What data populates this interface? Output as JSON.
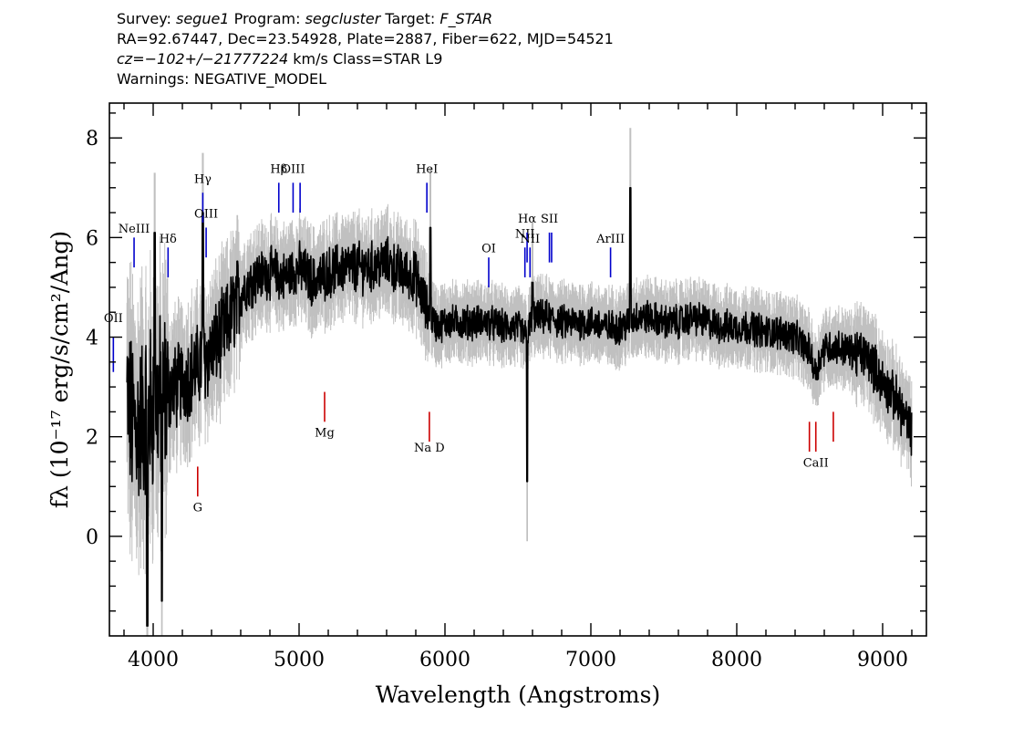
{
  "header": {
    "line1": {
      "survey_label": "Survey:",
      "survey": "segue1",
      "program_label": "Program:",
      "program": "segcluster",
      "target_label": "Target:",
      "target": "F_STAR"
    },
    "line2": "RA=92.67447, Dec=23.54928, Plate=2887, Fiber=622, MJD=54521",
    "line3": {
      "cz": "cz=−102+/−21777224",
      "rest": "km/s Class=STAR L9"
    },
    "line4": "Warnings: NEGATIVE_MODEL"
  },
  "chart_data": {
    "type": "line",
    "xlabel": "Wavelength (Angstroms)",
    "ylabel": "fλ (10⁻¹⁷ erg/s/cm²/Ang)",
    "xlim": [
      3700,
      9300
    ],
    "ylim": [
      -2.0,
      8.7
    ],
    "x_ticks": [
      4000,
      5000,
      6000,
      7000,
      8000,
      9000
    ],
    "y_ticks": [
      0,
      2,
      4,
      6,
      8
    ],
    "grid": false,
    "colors": {
      "flux": "#000000",
      "error": "#c0c0c0",
      "emission": "#0000cc",
      "absorption": "#cc0000"
    },
    "continuum": {
      "x": [
        3820,
        3850,
        3900,
        3950,
        4000,
        4100,
        4200,
        4300,
        4400,
        4500,
        4600,
        4700,
        4800,
        4900,
        5000,
        5100,
        5200,
        5300,
        5400,
        5500,
        5600,
        5700,
        5800,
        5880,
        5950,
        6000,
        6100,
        6200,
        6300,
        6400,
        6500,
        6560,
        6600,
        6700,
        6800,
        6900,
        7000,
        7100,
        7200,
        7270,
        7300,
        7400,
        7500,
        7600,
        7700,
        7800,
        7900,
        8000,
        8100,
        8200,
        8300,
        8400,
        8500,
        8540,
        8600,
        8700,
        8800,
        8900,
        9000,
        9100,
        9200
      ],
      "y": [
        2.8,
        2.3,
        2.2,
        2.5,
        2.6,
        2.9,
        3.1,
        3.4,
        3.7,
        4.2,
        4.9,
        5.2,
        5.3,
        5.2,
        5.4,
        5.1,
        5.3,
        5.4,
        5.4,
        5.4,
        5.5,
        5.3,
        5.2,
        4.5,
        4.2,
        4.3,
        4.3,
        4.3,
        4.3,
        4.2,
        4.2,
        4.0,
        4.4,
        4.4,
        4.3,
        4.3,
        4.3,
        4.2,
        4.2,
        4.3,
        4.4,
        4.4,
        4.3,
        4.3,
        4.4,
        4.3,
        4.2,
        4.2,
        4.2,
        4.1,
        4.1,
        4.0,
        3.7,
        3.3,
        3.8,
        3.8,
        3.7,
        3.6,
        3.1,
        2.7,
        2.1
      ]
    },
    "features": [
      {
        "x": 4340,
        "y": 6.5
      },
      {
        "x": 5900,
        "y": 6.2
      },
      {
        "x": 6563,
        "y": 1.1
      },
      {
        "x": 6600,
        "y": 5.1
      },
      {
        "x": 7270,
        "y": 7.0
      },
      {
        "x": 3960,
        "y": -1.8
      },
      {
        "x": 4060,
        "y": -1.3
      },
      {
        "x": 4010,
        "y": 6.1
      }
    ],
    "emission_lines": [
      {
        "label": "OII",
        "x": 3727,
        "y0": 3.3,
        "y1": 4.0,
        "label_y": 4.3
      },
      {
        "label": "NeIII",
        "x": 3869,
        "y0": 5.4,
        "y1": 6.0,
        "label_y": 6.1
      },
      {
        "label": "Hδ",
        "x": 4102,
        "y0": 5.2,
        "y1": 5.8,
        "label_y": 5.9
      },
      {
        "label": "Hγ",
        "x": 4340,
        "y0": 6.3,
        "y1": 6.9,
        "label_y": 7.1
      },
      {
        "label": "OIII",
        "x": 4363,
        "y0": 5.6,
        "y1": 6.2,
        "label_y": 6.4
      },
      {
        "label": "Hβ",
        "x": 4861,
        "y0": 6.5,
        "y1": 7.1,
        "label_y": 7.3
      },
      {
        "label": "OIII",
        "x": 4959,
        "y0": 6.5,
        "y1": 7.1,
        "label_y": 7.3
      },
      {
        "label": "",
        "x": 5007,
        "y0": 6.5,
        "y1": 7.1,
        "label_y": 7.3
      },
      {
        "label": "HeI",
        "x": 5876,
        "y0": 6.5,
        "y1": 7.1,
        "label_y": 7.3
      },
      {
        "label": "OI",
        "x": 6300,
        "y0": 5.0,
        "y1": 5.6,
        "label_y": 5.7
      },
      {
        "label": "NII",
        "x": 6548,
        "y0": 5.2,
        "y1": 5.8,
        "label_y": 6.0
      },
      {
        "label": "Hα",
        "x": 6563,
        "y0": 5.5,
        "y1": 6.1,
        "label_y": 6.3
      },
      {
        "label": "NII",
        "x": 6583,
        "y0": 5.2,
        "y1": 5.8,
        "label_y": 5.9
      },
      {
        "label": "SII",
        "x": 6716,
        "y0": 5.5,
        "y1": 6.1,
        "label_y": 6.3
      },
      {
        "label": "",
        "x": 6731,
        "y0": 5.5,
        "y1": 6.1,
        "label_y": 6.3
      },
      {
        "label": "ArIII",
        "x": 7135,
        "y0": 5.2,
        "y1": 5.8,
        "label_y": 5.9
      }
    ],
    "absorption_lines": [
      {
        "label": "G",
        "x": 4305,
        "y0": 0.8,
        "y1": 1.4,
        "label_y": 0.5
      },
      {
        "label": "Mg",
        "x": 5175,
        "y0": 2.3,
        "y1": 2.9,
        "label_y": 2.0
      },
      {
        "label": "Na D",
        "x": 5893,
        "y0": 1.9,
        "y1": 2.5,
        "label_y": 1.7
      },
      {
        "label": "",
        "x": 8498,
        "y0": 1.7,
        "y1": 2.3,
        "label_y": 1.4
      },
      {
        "label": "CaII",
        "x": 8542,
        "y0": 1.7,
        "y1": 2.3,
        "label_y": 1.4
      },
      {
        "label": "",
        "x": 8662,
        "y0": 1.9,
        "y1": 2.5,
        "label_y": 1.4
      }
    ]
  }
}
